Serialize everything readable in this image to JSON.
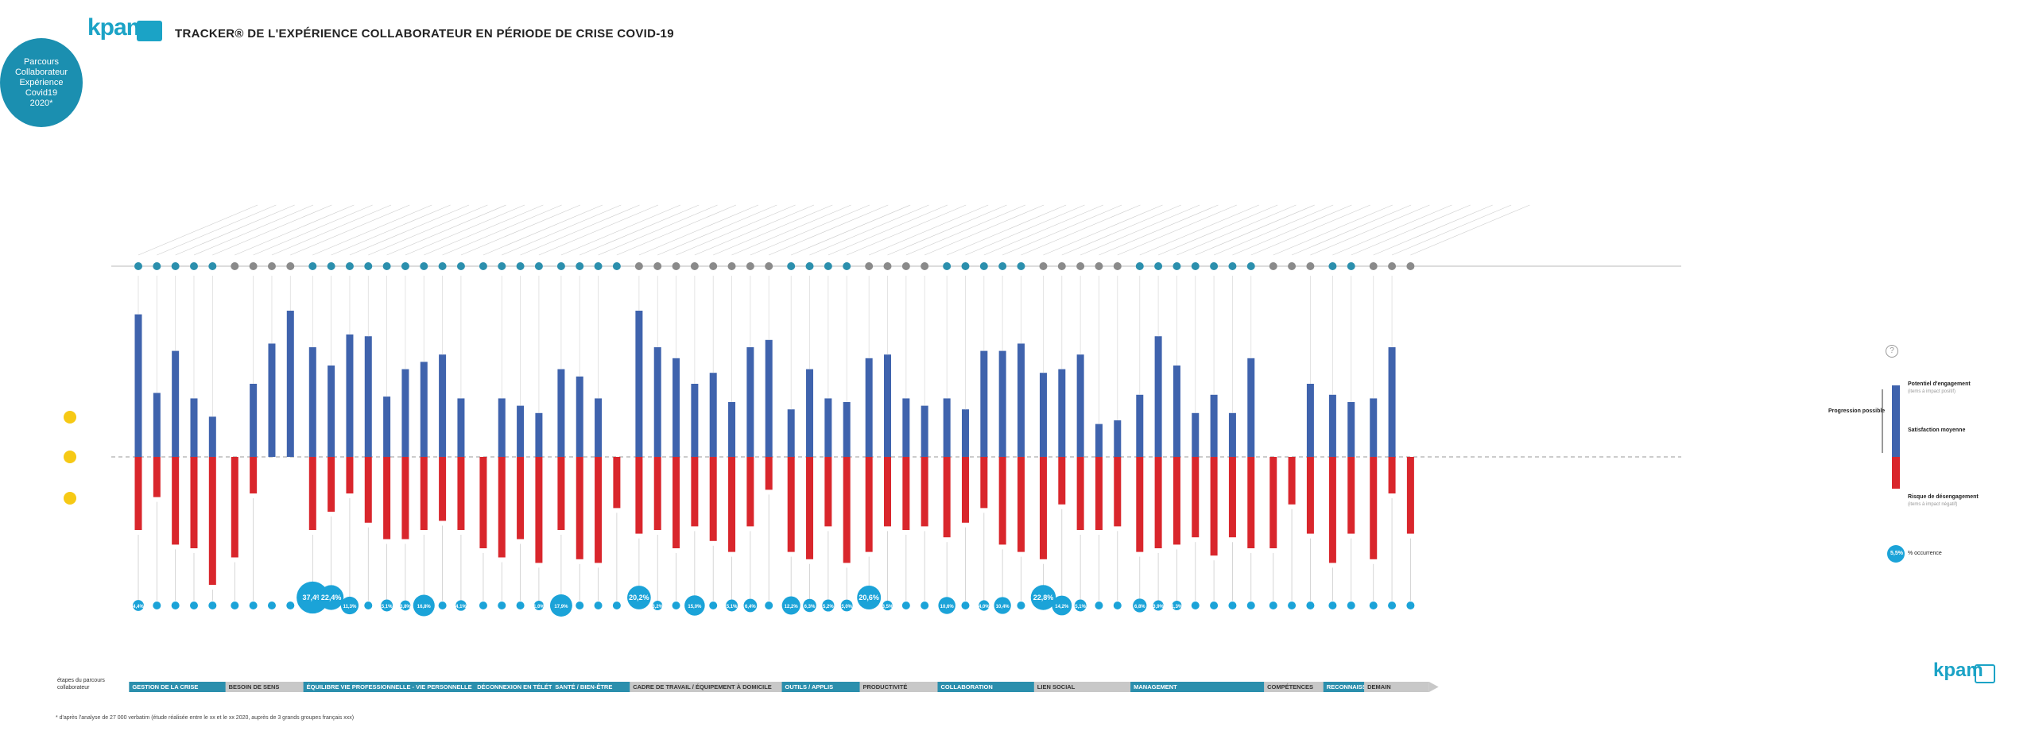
{
  "header": {
    "logo_text": "kpam",
    "title": "TRACKER® DE L'EXPÉRIENCE COLLABORATEUR EN PÉRIODE DE CRISE COVID-19",
    "badge_text": "Parcours\nCollaborateur\nExpérience\nCovid19\n2020*"
  },
  "stages_caption": "étapes du parcours collaborateur",
  "footnote": "* d'après l'analyse de 27 000 verbatim (étude réalisée entre le xx et le xx 2020, auprès de 3 grands groupes français xxx)",
  "footer_logo_text": "kpam",
  "legend": {
    "help": "?",
    "progression": "Progression possible",
    "potentiel": "Potentiel d'engagement",
    "potentiel_sub": "(items à impact positif)",
    "satisfaction": "Satisfaction moyenne",
    "risque": "Risque de désengagement",
    "risque_sub": "(items à impact négatif)",
    "occurrence_value": "5,5%",
    "occurrence_label": "% occurrence"
  },
  "chart_data": {
    "type": "bar",
    "title": "TRACKER® DE L'EXPÉRIENCE COLLABORATEUR EN PÉRIODE DE CRISE COVID-19",
    "description": "Diverging bars per item: blue = engagement potential (positive), red = disengagement risk (negative), bubble = % occurrence",
    "stages": [
      {
        "name": "GESTION DE LA CRISE",
        "style": "blue",
        "items": [
          {
            "pos": 78,
            "neg": -40,
            "occ": "4,4%"
          },
          {
            "pos": 35,
            "neg": -22,
            "occ": ""
          },
          {
            "pos": 58,
            "neg": -48,
            "occ": ""
          },
          {
            "pos": 32,
            "neg": -50,
            "occ": ""
          },
          {
            "pos": 22,
            "neg": -70,
            "occ": ""
          }
        ]
      },
      {
        "name": "BESOIN DE SENS",
        "style": "grey",
        "items": [
          {
            "pos": 0,
            "neg": -55,
            "occ": ""
          },
          {
            "pos": 40,
            "neg": -20,
            "occ": ""
          },
          {
            "pos": 62,
            "neg": 0,
            "occ": ""
          },
          {
            "pos": 80,
            "neg": 0,
            "occ": ""
          }
        ]
      },
      {
        "name": "ÉQUILIBRE VIE PROFESSIONNELLE - VIE PERSONNELLE",
        "style": "blue",
        "items": [
          {
            "pos": 60,
            "neg": -40,
            "occ": "37,4%"
          },
          {
            "pos": 50,
            "neg": -30,
            "occ": "22,4%"
          },
          {
            "pos": 67,
            "neg": -20,
            "occ": "11,3%"
          },
          {
            "pos": 66,
            "neg": -36,
            "occ": ""
          },
          {
            "pos": 33,
            "neg": -45,
            "occ": "5,1%"
          },
          {
            "pos": 48,
            "neg": -45,
            "occ": "3,8%"
          },
          {
            "pos": 52,
            "neg": -40,
            "occ": "16,8%"
          },
          {
            "pos": 56,
            "neg": -35,
            "occ": ""
          },
          {
            "pos": 32,
            "neg": -40,
            "occ": "4,1%"
          }
        ]
      },
      {
        "name": "DÉCONNEXION EN TÉLÉTRAVAIL",
        "style": "blue",
        "items": [
          {
            "pos": 0,
            "neg": -50,
            "occ": ""
          },
          {
            "pos": 32,
            "neg": -55,
            "occ": ""
          },
          {
            "pos": 28,
            "neg": -45,
            "occ": ""
          },
          {
            "pos": 24,
            "neg": -58,
            "occ": "1,0%"
          }
        ]
      },
      {
        "name": "SANTÉ / BIEN-ÊTRE",
        "style": "blue",
        "items": [
          {
            "pos": 48,
            "neg": -40,
            "occ": "17,9%"
          },
          {
            "pos": 44,
            "neg": -56,
            "occ": ""
          },
          {
            "pos": 32,
            "neg": -58,
            "occ": ""
          },
          {
            "pos": 0,
            "neg": -28,
            "occ": ""
          }
        ]
      },
      {
        "name": "CADRE DE TRAVAIL / ÉQUIPEMENT À DOMICILE",
        "style": "grey",
        "items": [
          {
            "pos": 80,
            "neg": -42,
            "occ": "20,2%"
          },
          {
            "pos": 60,
            "neg": -40,
            "occ": "3,2%"
          },
          {
            "pos": 54,
            "neg": -50,
            "occ": ""
          },
          {
            "pos": 40,
            "neg": -38,
            "occ": "15,0%"
          },
          {
            "pos": 46,
            "neg": -46,
            "occ": ""
          },
          {
            "pos": 30,
            "neg": -52,
            "occ": "5,1%"
          },
          {
            "pos": 60,
            "neg": -38,
            "occ": "6,4%"
          },
          {
            "pos": 64,
            "neg": -18,
            "occ": ""
          }
        ]
      },
      {
        "name": "OUTILS / APPLIS",
        "style": "blue",
        "items": [
          {
            "pos": 26,
            "neg": -52,
            "occ": "12,2%"
          },
          {
            "pos": 48,
            "neg": -56,
            "occ": "6,3%"
          },
          {
            "pos": 32,
            "neg": -38,
            "occ": "5,2%"
          },
          {
            "pos": 30,
            "neg": -58,
            "occ": "5,0%"
          }
        ]
      },
      {
        "name": "PRODUCTIVITÉ",
        "style": "grey",
        "items": [
          {
            "pos": 54,
            "neg": -52,
            "occ": "20,6%"
          },
          {
            "pos": 56,
            "neg": -38,
            "occ": "3,5%"
          },
          {
            "pos": 32,
            "neg": -40,
            "occ": ""
          },
          {
            "pos": 28,
            "neg": -38,
            "occ": ""
          }
        ]
      },
      {
        "name": "COLLABORATION",
        "style": "blue",
        "items": [
          {
            "pos": 32,
            "neg": -44,
            "occ": "10,6%"
          },
          {
            "pos": 26,
            "neg": -36,
            "occ": ""
          },
          {
            "pos": 58,
            "neg": -28,
            "occ": "4,0%"
          },
          {
            "pos": 58,
            "neg": -48,
            "occ": "10,4%"
          },
          {
            "pos": 62,
            "neg": -52,
            "occ": ""
          }
        ]
      },
      {
        "name": "LIEN SOCIAL",
        "style": "grey",
        "items": [
          {
            "pos": 46,
            "neg": -56,
            "occ": "22,8%"
          },
          {
            "pos": 48,
            "neg": -26,
            "occ": "14,2%"
          },
          {
            "pos": 56,
            "neg": -40,
            "occ": "5,1%"
          },
          {
            "pos": 18,
            "neg": -40,
            "occ": ""
          },
          {
            "pos": 20,
            "neg": -38,
            "occ": ""
          }
        ]
      },
      {
        "name": "MANAGEMENT",
        "style": "blue",
        "items": [
          {
            "pos": 34,
            "neg": -52,
            "occ": "6,8%"
          },
          {
            "pos": 66,
            "neg": -50,
            "occ": "3,9%"
          },
          {
            "pos": 50,
            "neg": -48,
            "occ": "1,3%"
          },
          {
            "pos": 24,
            "neg": -44,
            "occ": ""
          },
          {
            "pos": 34,
            "neg": -54,
            "occ": ""
          },
          {
            "pos": 24,
            "neg": -44,
            "occ": ""
          },
          {
            "pos": 54,
            "neg": -50,
            "occ": ""
          }
        ]
      },
      {
        "name": "COMPÉTENCES",
        "style": "grey",
        "items": [
          {
            "pos": 0,
            "neg": -50,
            "occ": ""
          },
          {
            "pos": 0,
            "neg": -26,
            "occ": ""
          },
          {
            "pos": 40,
            "neg": -42,
            "occ": ""
          }
        ]
      },
      {
        "name": "RECONNAISSANCE",
        "style": "blue",
        "items": [
          {
            "pos": 34,
            "neg": -58,
            "occ": ""
          },
          {
            "pos": 30,
            "neg": -42,
            "occ": ""
          }
        ]
      },
      {
        "name": "DEMAIN",
        "style": "grey",
        "items": [
          {
            "pos": 32,
            "neg": -56,
            "occ": ""
          },
          {
            "pos": 60,
            "neg": -20,
            "occ": ""
          },
          {
            "pos": 0,
            "neg": -42,
            "occ": ""
          }
        ]
      }
    ],
    "colors": {
      "positive": "#3f63ad",
      "negative": "#d9262c",
      "bubble": "#1ba3d8",
      "stage_blue": "#2b8fad",
      "stage_grey": "#c8c8c8"
    }
  }
}
